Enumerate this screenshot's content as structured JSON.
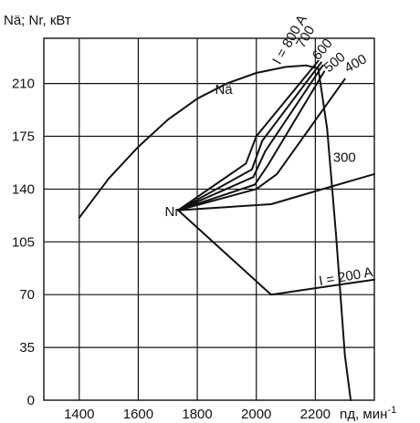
{
  "chart_data": {
    "type": "line",
    "title": "",
    "ylabel": "Nä; Nr, кВт",
    "xlabel": "nд, мин-1",
    "xlim": [
      1280,
      2400
    ],
    "ylim": [
      0,
      240
    ],
    "xticks": [
      1400,
      1600,
      1800,
      2000,
      2200
    ],
    "yticks": [
      0,
      35,
      70,
      105,
      140,
      175,
      210
    ],
    "grid": true,
    "series": [
      {
        "name": "Nä",
        "points": [
          [
            1400,
            121
          ],
          [
            1500,
            147
          ],
          [
            1600,
            168
          ],
          [
            1700,
            186
          ],
          [
            1800,
            200
          ],
          [
            1900,
            210
          ],
          [
            2000,
            217
          ],
          [
            2100,
            221
          ],
          [
            2170,
            222
          ],
          [
            2210,
            220
          ],
          [
            2240,
            180
          ],
          [
            2270,
            110
          ],
          [
            2300,
            30
          ],
          [
            2320,
            0
          ]
        ]
      },
      {
        "name": "I = 800 A",
        "points": [
          [
            1735,
            126
          ],
          [
            1965,
            157
          ],
          [
            2000,
            175
          ],
          [
            2210,
            225
          ]
        ]
      },
      {
        "name": "700",
        "points": [
          [
            1735,
            126
          ],
          [
            1985,
            153
          ],
          [
            2020,
            172
          ],
          [
            2220,
            224
          ]
        ]
      },
      {
        "name": "600",
        "points": [
          [
            1735,
            126
          ],
          [
            1990,
            148
          ],
          [
            2030,
            165
          ],
          [
            2225,
            222
          ]
        ]
      },
      {
        "name": "500",
        "points": [
          [
            1735,
            126
          ],
          [
            1995,
            143
          ],
          [
            2040,
            156
          ],
          [
            2230,
            218
          ]
        ]
      },
      {
        "name": "400",
        "points": [
          [
            1735,
            126
          ],
          [
            2000,
            140
          ],
          [
            2070,
            150
          ],
          [
            2300,
            213
          ]
        ]
      },
      {
        "name": "300",
        "points": [
          [
            1735,
            126
          ],
          [
            2050,
            130
          ],
          [
            2400,
            150
          ]
        ]
      },
      {
        "name": "I = 200 A",
        "points": [
          [
            1735,
            126
          ],
          [
            2050,
            70
          ],
          [
            2400,
            80
          ]
        ]
      }
    ],
    "annotations": [
      {
        "text": "Nä",
        "x": 1860,
        "y": 203
      },
      {
        "text": "Nг",
        "x": 1690,
        "y": 122
      },
      {
        "text": "I = 800 A",
        "x": 2080,
        "y": 222,
        "rotate": -60
      },
      {
        "text": "700",
        "x": 2160,
        "y": 233,
        "rotate": -60
      },
      {
        "text": "600",
        "x": 2210,
        "y": 225,
        "rotate": -50
      },
      {
        "text": "500",
        "x": 2245,
        "y": 217,
        "rotate": -40
      },
      {
        "text": "400",
        "x": 2310,
        "y": 217,
        "rotate": -30
      },
      {
        "text": "300",
        "x": 2260,
        "y": 158
      },
      {
        "text": "I = 200 A",
        "x": 2215,
        "y": 76,
        "rotate": -10
      }
    ]
  }
}
